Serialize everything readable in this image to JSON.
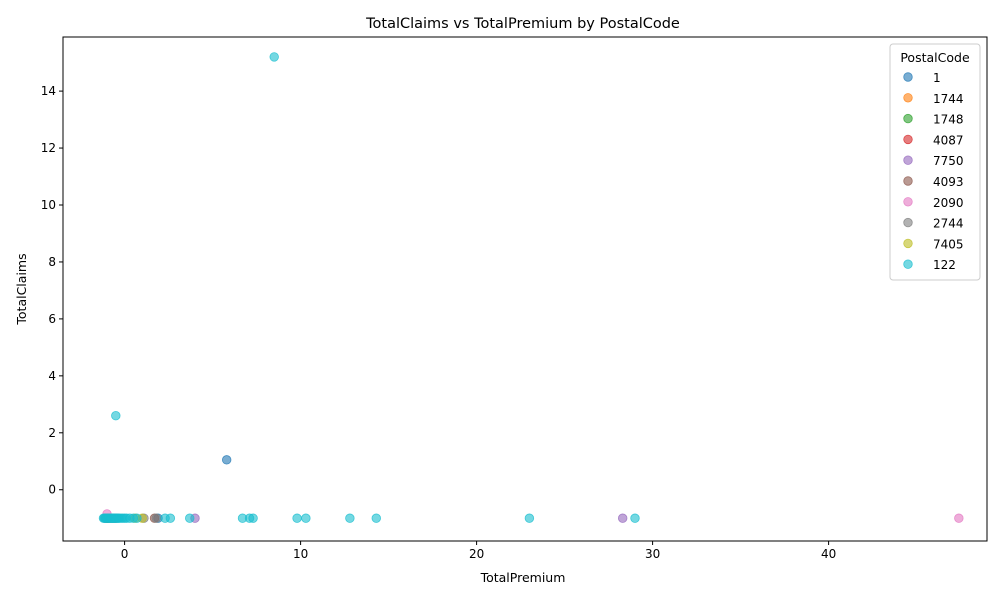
{
  "chart_data": {
    "type": "scatter",
    "title": "TotalClaims vs TotalPremium by PostalCode",
    "xlabel": "TotalPremium",
    "ylabel": "TotalClaims",
    "xlim": [
      -3.5,
      49.0
    ],
    "ylim": [
      -1.8,
      15.9
    ],
    "xticks": [
      0,
      10,
      20,
      30,
      40
    ],
    "yticks": [
      0,
      2,
      4,
      6,
      8,
      10,
      12,
      14
    ],
    "grid": false,
    "legend_title": "PostalCode",
    "legend_position": "top-right",
    "series": [
      {
        "name": "1",
        "color": "#1f77b4",
        "points": [
          [
            -1.1,
            -1.0
          ],
          [
            -0.9,
            -1.0
          ],
          [
            -0.6,
            -1.0
          ],
          [
            5.8,
            1.05
          ],
          [
            1.9,
            -1.0
          ]
        ]
      },
      {
        "name": "1744",
        "color": "#ff7f0e",
        "points": [
          [
            -1.0,
            -1.0
          ],
          [
            -0.8,
            -1.0
          ]
        ]
      },
      {
        "name": "1748",
        "color": "#2ca02c",
        "points": [
          [
            -1.05,
            -1.0
          ],
          [
            -0.7,
            -1.0
          ]
        ]
      },
      {
        "name": "4087",
        "color": "#d62728",
        "points": [
          [
            -1.0,
            -1.0
          ],
          [
            -0.5,
            -1.0
          ]
        ]
      },
      {
        "name": "7750",
        "color": "#9467bd",
        "points": [
          [
            -1.1,
            -1.0
          ],
          [
            -0.8,
            -1.0
          ],
          [
            4.0,
            -1.0
          ],
          [
            28.3,
            -1.0
          ]
        ]
      },
      {
        "name": "4093",
        "color": "#8c564b",
        "points": [
          [
            -1.0,
            -1.0
          ],
          [
            1.7,
            -1.0
          ]
        ]
      },
      {
        "name": "2090",
        "color": "#e377c2",
        "points": [
          [
            -1.0,
            -0.85
          ],
          [
            -1.1,
            -1.0
          ],
          [
            47.4,
            -1.0
          ]
        ]
      },
      {
        "name": "2744",
        "color": "#7f7f7f",
        "points": [
          [
            -0.9,
            -1.0
          ],
          [
            1.1,
            -1.0
          ],
          [
            1.8,
            -1.0
          ]
        ]
      },
      {
        "name": "7405",
        "color": "#bcbd22",
        "points": [
          [
            -1.0,
            -1.0
          ],
          [
            0.6,
            -1.0
          ],
          [
            1.0,
            -1.0
          ]
        ]
      },
      {
        "name": "122",
        "color": "#17becf",
        "points": [
          [
            -1.2,
            -1.0
          ],
          [
            -1.15,
            -1.0
          ],
          [
            -1.1,
            -1.0
          ],
          [
            -1.05,
            -1.0
          ],
          [
            -1.0,
            -1.0
          ],
          [
            -0.95,
            -1.0
          ],
          [
            -0.9,
            -1.0
          ],
          [
            -0.85,
            -1.0
          ],
          [
            -0.8,
            -1.0
          ],
          [
            -0.75,
            -1.0
          ],
          [
            -0.7,
            -1.0
          ],
          [
            -0.65,
            -1.0
          ],
          [
            -0.6,
            -1.0
          ],
          [
            -0.55,
            -1.0
          ],
          [
            -0.5,
            -1.0
          ],
          [
            -0.45,
            -1.0
          ],
          [
            -0.4,
            -1.0
          ],
          [
            -0.35,
            -1.0
          ],
          [
            -0.3,
            -1.0
          ],
          [
            -0.2,
            -1.0
          ],
          [
            -0.1,
            -1.0
          ],
          [
            0.0,
            -1.0
          ],
          [
            0.1,
            -1.0
          ],
          [
            0.3,
            -1.0
          ],
          [
            0.5,
            -1.0
          ],
          [
            0.7,
            -1.0
          ],
          [
            -0.5,
            2.6
          ],
          [
            2.3,
            -1.0
          ],
          [
            2.6,
            -1.0
          ],
          [
            3.7,
            -1.0
          ],
          [
            6.7,
            -1.0
          ],
          [
            7.1,
            -1.0
          ],
          [
            7.3,
            -1.0
          ],
          [
            8.5,
            15.2
          ],
          [
            9.8,
            -1.0
          ],
          [
            10.3,
            -1.0
          ],
          [
            12.8,
            -1.0
          ],
          [
            14.3,
            -1.0
          ],
          [
            23.0,
            -1.0
          ],
          [
            29.0,
            -1.0
          ]
        ]
      }
    ]
  }
}
